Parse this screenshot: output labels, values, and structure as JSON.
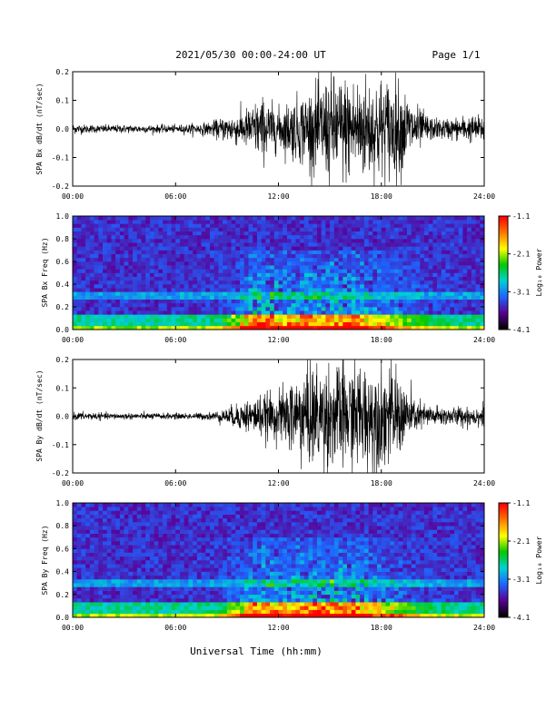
{
  "header": {
    "title": "2021/05/30  00:00-24:00 UT",
    "page": "Page 1/1"
  },
  "xlabel": "Universal Time (hh:mm)",
  "colorbar": {
    "label": "Log₁₀ Power",
    "ticks": [
      "-1.1",
      "-2.1",
      "-3.1",
      "-4.1"
    ],
    "values": [
      -1.1,
      -2.1,
      -3.1,
      -4.1
    ],
    "range": [
      -4.1,
      -1.1
    ],
    "colors": [
      "#000000",
      "#5a0096",
      "#1e64ff",
      "#00d2d2",
      "#00c800",
      "#ffff00",
      "#ff7800",
      "#ff0000"
    ]
  },
  "chart_data": [
    {
      "type": "line",
      "ylabel": "SPA Bx dB/dt (nT/sec)",
      "xlim": [
        0,
        24
      ],
      "ylim": [
        -0.2,
        0.2
      ],
      "x_ticks": [
        "00:00",
        "06:00",
        "12:00",
        "18:00",
        "24:00"
      ],
      "y_ticks": [
        "0.2",
        "0.1",
        "0.0",
        "-0.1",
        "-0.2"
      ],
      "series": [
        {
          "x": [
            0,
            1,
            2,
            3,
            4,
            5,
            6,
            7,
            8,
            9,
            10,
            11,
            12,
            13,
            14,
            15,
            16,
            17,
            18,
            19,
            20,
            21,
            22,
            23,
            24
          ],
          "amplitude": [
            0.02,
            0.015,
            0.015,
            0.015,
            0.015,
            0.015,
            0.015,
            0.02,
            0.025,
            0.05,
            0.07,
            0.12,
            0.08,
            0.12,
            0.16,
            0.2,
            0.2,
            0.2,
            0.2,
            0.18,
            0.09,
            0.04,
            0.04,
            0.05,
            0.05
          ]
        }
      ]
    },
    {
      "type": "heatmap",
      "ylabel": "SPA Bx Freq (Hz)",
      "xlim": [
        0,
        24
      ],
      "ylim": [
        0,
        1
      ],
      "x_ticks": [
        "00:00",
        "06:00",
        "12:00",
        "18:00",
        "24:00"
      ],
      "y_ticks": [
        "1.0",
        "0.8",
        "0.6",
        "0.4",
        "0.2",
        "0.0"
      ],
      "zlim": [
        -4.1,
        -1.1
      ]
    },
    {
      "type": "line",
      "ylabel": "SPA By dB/dt (nT/sec)",
      "xlim": [
        0,
        24
      ],
      "ylim": [
        -0.2,
        0.2
      ],
      "x_ticks": [
        "00:00",
        "06:00",
        "12:00",
        "18:00",
        "24:00"
      ],
      "y_ticks": [
        "0.2",
        "0.1",
        "0.0",
        "-0.1",
        "-0.2"
      ],
      "series": [
        {
          "x": [
            0,
            1,
            2,
            3,
            4,
            5,
            6,
            7,
            8,
            9,
            10,
            11,
            12,
            13,
            14,
            15,
            16,
            17,
            18,
            19,
            20,
            21,
            22,
            23,
            24
          ],
          "amplitude": [
            0.015,
            0.015,
            0.012,
            0.012,
            0.012,
            0.012,
            0.012,
            0.012,
            0.015,
            0.03,
            0.06,
            0.08,
            0.09,
            0.16,
            0.2,
            0.2,
            0.2,
            0.2,
            0.2,
            0.16,
            0.06,
            0.04,
            0.035,
            0.04,
            0.04
          ]
        }
      ]
    },
    {
      "type": "heatmap",
      "ylabel": "SPA By Freq (Hz)",
      "xlim": [
        0,
        24
      ],
      "ylim": [
        0,
        1
      ],
      "x_ticks": [
        "00:00",
        "06:00",
        "12:00",
        "18:00",
        "24:00"
      ],
      "y_ticks": [
        "1.0",
        "0.8",
        "0.6",
        "0.4",
        "0.2",
        "0.0"
      ],
      "zlim": [
        -4.1,
        -1.1
      ]
    }
  ]
}
